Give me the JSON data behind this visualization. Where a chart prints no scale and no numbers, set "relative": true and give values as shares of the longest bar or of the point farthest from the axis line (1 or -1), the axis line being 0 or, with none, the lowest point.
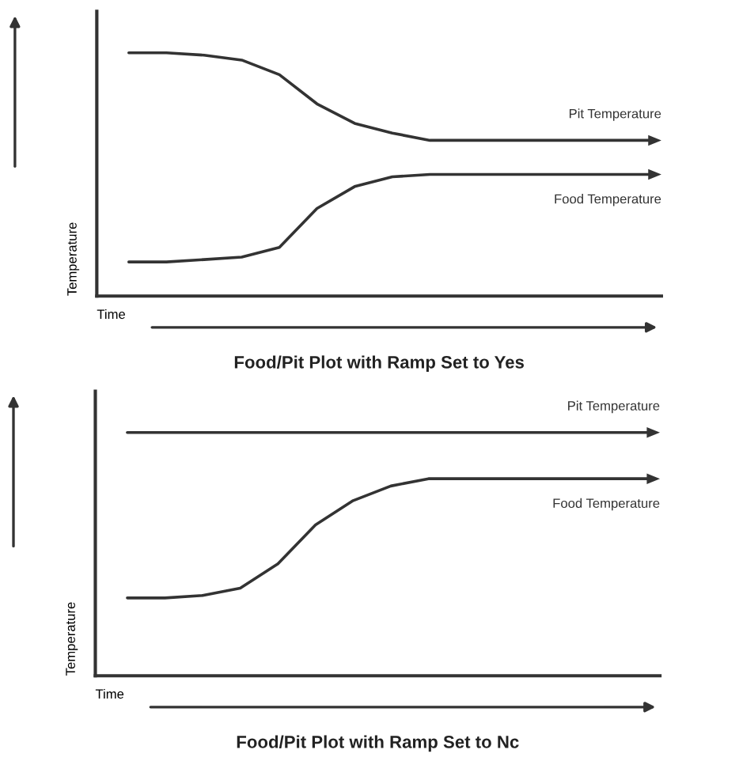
{
  "chart_data": [
    {
      "type": "line",
      "relative": true,
      "title": "Food/Pit Plot with Ramp Set to Yes",
      "xlabel": "Time",
      "ylabel": "Temperature",
      "tick_labels": false,
      "categories": [
        null,
        null,
        null,
        null,
        null,
        null,
        null,
        null,
        null,
        null,
        null,
        null,
        null,
        null,
        null
      ],
      "series": [
        {
          "name": "Pit Temperature",
          "color": "#333333",
          "values": [
            1,
            1,
            0.99,
            0.97,
            0.91,
            0.79,
            0.71,
            0.67,
            0.64,
            0.64,
            0.64,
            0.64,
            0.64,
            0.64,
            0.64
          ]
        },
        {
          "name": "Food Temperature",
          "color": "#333333",
          "values": [
            0.14,
            0.14,
            0.15,
            0.16,
            0.2,
            0.36,
            0.45,
            0.49,
            0.5,
            0.5,
            0.5,
            0.5,
            0.5,
            0.5,
            0.5
          ]
        }
      ]
    },
    {
      "type": "line",
      "relative": true,
      "title": "Food/Pit Plot with Ramp Set to Nc",
      "xlabel": "Time",
      "ylabel": "Temperature",
      "tick_labels": false,
      "categories": [
        null,
        null,
        null,
        null,
        null,
        null,
        null,
        null,
        null,
        null,
        null,
        null,
        null,
        null,
        null
      ],
      "series": [
        {
          "name": "Pit Temperature",
          "color": "#333333",
          "values": [
            1,
            1,
            1,
            1,
            1,
            1,
            1,
            1,
            1,
            1,
            1,
            1,
            1,
            1,
            1
          ]
        },
        {
          "name": "Food Temperature",
          "color": "#333333",
          "values": [
            0.32,
            0.32,
            0.33,
            0.36,
            0.46,
            0.62,
            0.72,
            0.78,
            0.81,
            0.81,
            0.81,
            0.81,
            0.81,
            0.81,
            0.81
          ]
        }
      ]
    }
  ]
}
